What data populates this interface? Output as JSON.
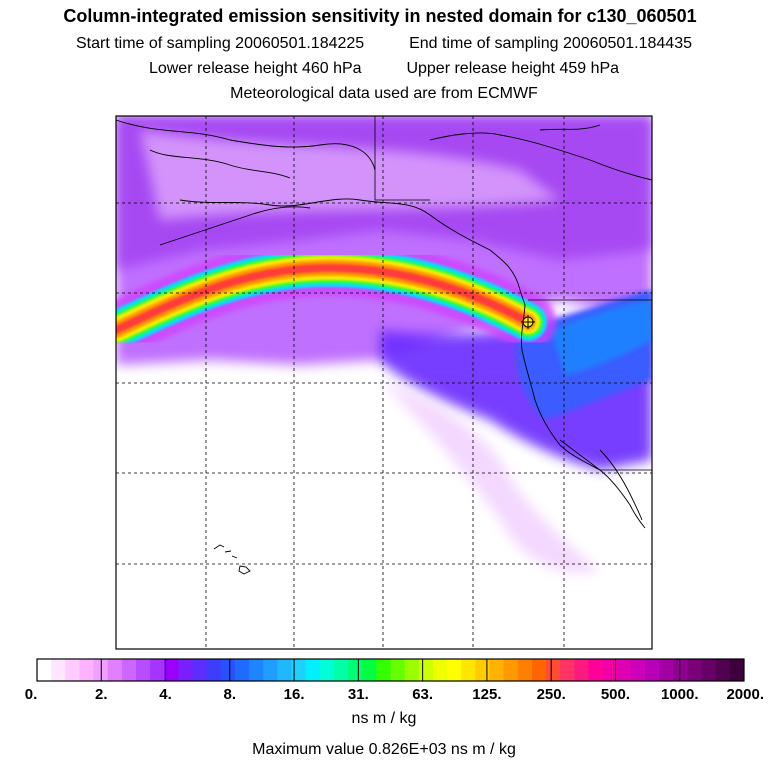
{
  "title": "Column-integrated emission sensitivity in nested domain for c130_060501",
  "start_label": "Start time of sampling",
  "start_value": "20060501.184225",
  "end_label": "End time of sampling",
  "end_value": "20060501.184435",
  "lower_label": "Lower release height",
  "lower_value": "460 hPa",
  "upper_label": "Upper release height",
  "upper_value": "459 hPa",
  "met_text": "Meteorological data used are from ECMWF",
  "colorbar": {
    "tick_labels": [
      "0.",
      "2.",
      "4.",
      "8.",
      "16.",
      "31.",
      "63.",
      "125.",
      "250.",
      "500.",
      "1000.",
      "2000."
    ],
    "units": "ns m / kg",
    "colors": [
      "#ffffff",
      "#ffe6ff",
      "#ffccff",
      "#ffb3ff",
      "#f2a0ff",
      "#e080ff",
      "#cc66ff",
      "#b84dff",
      "#a633ff",
      "#9900ff",
      "#7a1fff",
      "#5c2eff",
      "#3d3dff",
      "#2952ff",
      "#1f6bff",
      "#1f85ff",
      "#1f9eff",
      "#1fb8ff",
      "#1fd1ff",
      "#00f0ff",
      "#00ffd9",
      "#00ffa6",
      "#00ff73",
      "#00ff40",
      "#33ff00",
      "#66ff00",
      "#99ff00",
      "#ccff00",
      "#f0ff00",
      "#ffff00",
      "#ffe600",
      "#ffcc00",
      "#ffb300",
      "#ff9900",
      "#ff8000",
      "#ff6600",
      "#ff4d33",
      "#ff3366",
      "#ff1a80",
      "#ff0099",
      "#f000a6",
      "#e000b3",
      "#cc00b8",
      "#b800b8",
      "#a300a3",
      "#8f008f",
      "#7a007a",
      "#660066",
      "#520052",
      "#3d003d"
    ]
  },
  "max_value_text": "Maximum value  0.826E+03 ns m / kg"
}
